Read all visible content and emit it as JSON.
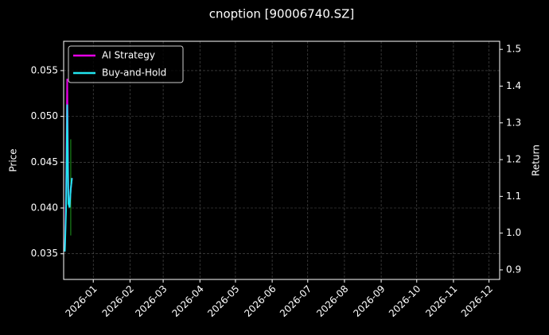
{
  "chart_data": {
    "type": "line",
    "title": "cnoption [90006740.SZ]",
    "y_label": "Price",
    "y2_label": "Return",
    "x": [
      "2025-12-08",
      "2025-12-09",
      "2025-12-10",
      "2025-12-11",
      "2025-12-12",
      "2025-12-13",
      "2025-12-14"
    ],
    "series": [
      {
        "name": "AI Strategy",
        "color": "#e600e6",
        "axis": "y2",
        "values": [
          0.95,
          1.1,
          1.42,
          1.09,
          1.07,
          1.12,
          1.15
        ]
      },
      {
        "name": "Buy-and-Hold",
        "color": "#22e5f0",
        "axis": "y2",
        "values": [
          0.95,
          1.06,
          1.35,
          1.08,
          1.07,
          1.12,
          1.15
        ]
      }
    ],
    "price": {
      "x": [
        "2025-12-13"
      ],
      "low": [
        0.037
      ],
      "high": [
        0.0475
      ],
      "color": "#1f9e1f"
    },
    "xlim": [
      "2025-12-07",
      "2026-12-10"
    ],
    "xticks": [
      {
        "value": "2026-01-01",
        "label": "2026-01"
      },
      {
        "value": "2026-02-01",
        "label": "2026-02"
      },
      {
        "value": "2026-03-01",
        "label": "2026-03"
      },
      {
        "value": "2026-04-01",
        "label": "2026-04"
      },
      {
        "value": "2026-05-01",
        "label": "2026-05"
      },
      {
        "value": "2026-06-01",
        "label": "2026-06"
      },
      {
        "value": "2026-07-01",
        "label": "2026-07"
      },
      {
        "value": "2026-08-01",
        "label": "2026-08"
      },
      {
        "value": "2026-09-01",
        "label": "2026-09"
      },
      {
        "value": "2026-10-01",
        "label": "2026-10"
      },
      {
        "value": "2026-11-01",
        "label": "2026-11"
      },
      {
        "value": "2026-12-01",
        "label": "2026-12"
      }
    ],
    "ylim": [
      0.0322,
      0.0582
    ],
    "yticks": [
      0.035,
      {
        "value": 0.04,
        "label": "0.040"
      },
      0.045,
      {
        "value": 0.05,
        "label": "0.050"
      },
      0.055
    ],
    "y2lim": [
      0.874,
      1.522
    ],
    "y2ticks": [
      0.9,
      {
        "value": 1,
        "label": "1.0"
      },
      1.1,
      1.2,
      1.3,
      1.4,
      1.5
    ],
    "grid": true,
    "legend": "upper-left"
  }
}
